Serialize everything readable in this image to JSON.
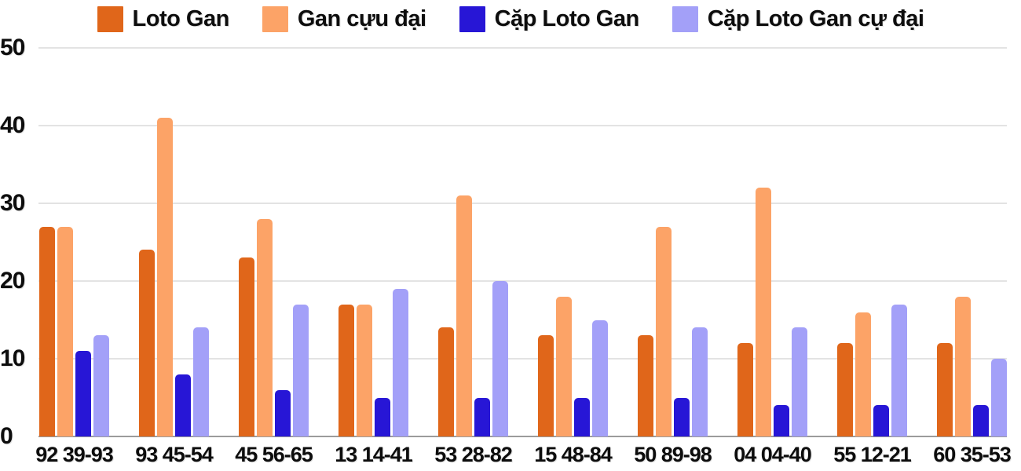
{
  "chart_data": {
    "type": "bar",
    "title": "",
    "xlabel": "",
    "ylabel": "",
    "ylim": [
      0,
      50
    ],
    "y_ticks": [
      0,
      10,
      20,
      30,
      40,
      50
    ],
    "grid": true,
    "legend_position": "top",
    "categories": [
      "92 39-93",
      "93 45-54",
      "45 56-65",
      "13 14-41",
      "53 28-82",
      "15 48-84",
      "50 89-98",
      "04 04-40",
      "55 12-21",
      "60 35-53"
    ],
    "series": [
      {
        "name": "Loto Gan",
        "color": "#e0661a",
        "values": [
          27,
          24,
          23,
          17,
          14,
          13,
          13,
          12,
          12,
          12
        ]
      },
      {
        "name": "Gan cựu đại",
        "color": "#fca367",
        "values": [
          27,
          41,
          28,
          17,
          31,
          18,
          27,
          32,
          16,
          18
        ]
      },
      {
        "name": "Cặp Loto Gan",
        "color": "#2716d6",
        "values": [
          11,
          8,
          6,
          5,
          5,
          5,
          5,
          4,
          4,
          4
        ]
      },
      {
        "name": "Cặp Loto Gan cự đại",
        "color": "#a3a0f8",
        "values": [
          13,
          14,
          17,
          19,
          20,
          15,
          14,
          14,
          17,
          10
        ]
      }
    ]
  },
  "layout_colors": {
    "background": "#ffffff",
    "grid_line": "#e3e3e3",
    "axis_line": "#9b9b9b",
    "text": "#0d0d0d"
  }
}
